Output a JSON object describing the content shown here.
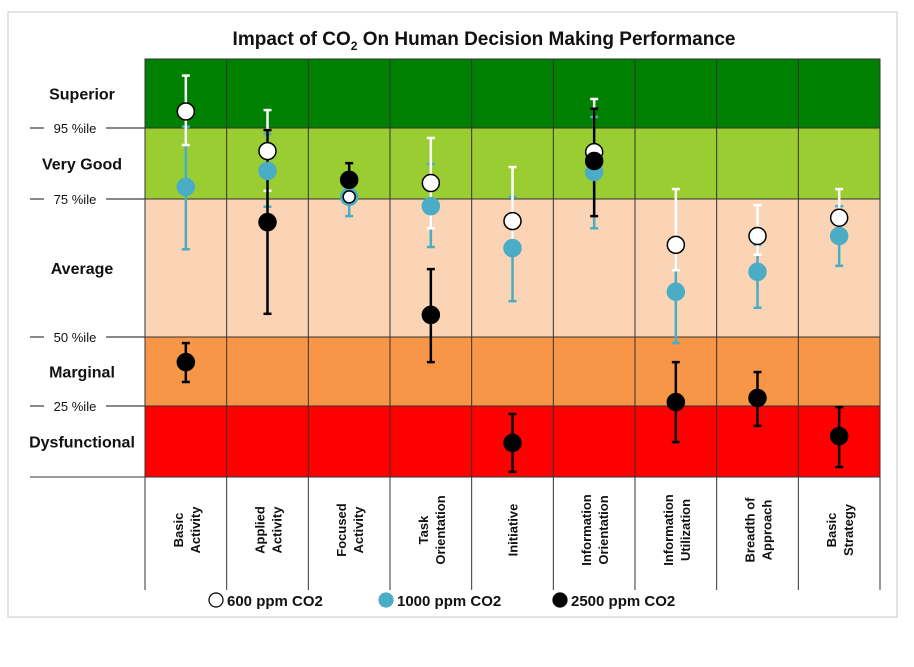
{
  "chart_data": {
    "type": "scatter",
    "title_parts": {
      "pre": "Impact of CO",
      "sub": "2",
      "post": " On Human Decision Making Performance"
    },
    "y_scale": "piecewise percentile bands",
    "y_breaks": [
      0,
      25,
      50,
      75,
      95,
      100
    ],
    "bands": [
      {
        "label": "Superior",
        "from": 95,
        "to": 100,
        "color": "#008000"
      },
      {
        "label": "Very Good",
        "from": 75,
        "to": 95,
        "color": "#9ACD32"
      },
      {
        "label": "Average",
        "from": 50,
        "to": 75,
        "color": "#FAD4B4"
      },
      {
        "label": "Marginal",
        "from": 25,
        "to": 50,
        "color": "#F79646"
      },
      {
        "label": "Dysfunctional",
        "from": 0,
        "to": 25,
        "color": "#FF0000"
      }
    ],
    "y_ticks": [
      {
        "value": 95,
        "label": "95 %ile"
      },
      {
        "value": 75,
        "label": "75 %ile"
      },
      {
        "value": 50,
        "label": "50 %ile"
      },
      {
        "value": 25,
        "label": "25 %ile"
      }
    ],
    "categories": [
      [
        "Basic",
        "Activity"
      ],
      [
        "Applied",
        "Activity"
      ],
      [
        "Focused",
        "Activity"
      ],
      [
        "Task",
        "Orientation"
      ],
      [
        "Initiative"
      ],
      [
        "Information",
        "Orientation"
      ],
      [
        "Information",
        "Utilization"
      ],
      [
        "Breadth of",
        "Approach"
      ],
      [
        "Basic",
        "Strategy"
      ]
    ],
    "series": [
      {
        "name": "600 ppm CO2",
        "fill": "#FFFFFF",
        "stroke": "#000000",
        "err_color": "#FFFFFF",
        "mean": [
          96.2,
          88.5,
          75.6,
          79.5,
          71.0,
          88.2,
          66.7,
          68.3,
          71.6
        ],
        "hi": [
          98.8,
          96.3,
          76.7,
          92.2,
          84.0,
          97.1,
          77.8,
          73.9,
          77.8
        ],
        "lo": [
          90.2,
          77.3,
          74.6,
          69.7,
          65.8,
          86.0,
          62.1,
          64.9,
          67.6
        ]
      },
      {
        "name": "1000 ppm CO2",
        "fill": "#4BACC6",
        "stroke": "#4BACC6",
        "err_color": "#4BACC6",
        "mean": [
          78.4,
          82.9,
          75.6,
          73.7,
          66.1,
          82.6,
          58.2,
          61.8,
          68.3
        ],
        "hi": [
          95.1,
          93.3,
          77.5,
          84.9,
          75.6,
          95.8,
          65.8,
          66.7,
          73.7
        ],
        "lo": [
          65.9,
          73.6,
          71.9,
          66.3,
          56.5,
          69.7,
          47.8,
          55.3,
          62.9
        ]
      },
      {
        "name": "2500 ppm CO2",
        "fill": "#000000",
        "stroke": "#000000",
        "err_color": "#000000",
        "mean": [
          40.9,
          70.8,
          80.4,
          54.0,
          12.0,
          85.7,
          26.4,
          27.9,
          14.4
        ],
        "hi": [
          47.8,
          94.4,
          85.1,
          62.3,
          22.2,
          96.4,
          40.9,
          37.3,
          24.6
        ],
        "lo": [
          33.7,
          54.2,
          77.5,
          40.9,
          1.8,
          71.9,
          12.3,
          18.0,
          3.5
        ]
      }
    ],
    "draw_order": [
      1,
      0,
      2
    ],
    "legend": {
      "placement": "bottom"
    },
    "grid": "vertical category dividers"
  }
}
